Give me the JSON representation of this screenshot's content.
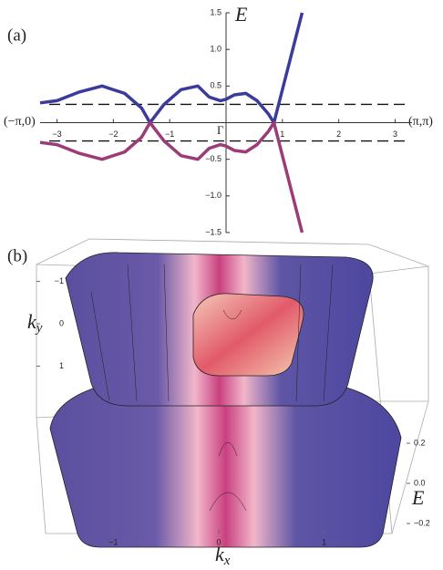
{
  "chart_data": [
    {
      "type": "line",
      "panel_label": "(a)",
      "ylabel": "E",
      "left_label": "(−π,0)",
      "right_label": "(π,π)",
      "center_label": "Γ",
      "xlim": [
        -3.3,
        3.3
      ],
      "ylim": [
        -1.5,
        1.5
      ],
      "xticks": [
        {
          "value": -3,
          "label": "−3"
        },
        {
          "value": -2,
          "label": "−2"
        },
        {
          "value": -1,
          "label": "−1"
        },
        1,
        2,
        3
      ],
      "yticks": [
        {
          "value": -1.5,
          "label": "−1.5"
        },
        {
          "value": -1,
          "label": "−1.0"
        },
        {
          "value": -0.5,
          "label": "−0.5"
        },
        0.5,
        {
          "value": 1,
          "label": "1.0"
        },
        1.5
      ],
      "hlines": [
        0.25,
        -0.25
      ],
      "x": [
        -3.3,
        -3,
        -2.6,
        -2.2,
        -1.8,
        -1.5,
        -1.35,
        -1.1,
        -0.8,
        -0.5,
        -0.3,
        -0.1,
        0,
        0.15,
        0.35,
        0.55,
        0.75,
        0.85,
        1.1,
        1.35
      ],
      "series": [
        {
          "color": "#3b3b9c",
          "values": [
            0.27,
            0.3,
            0.42,
            0.5,
            0.4,
            0.2,
            0,
            0.25,
            0.45,
            0.5,
            0.35,
            0.3,
            0.32,
            0.38,
            0.4,
            0.3,
            0.12,
            0,
            0.75,
            1.5
          ]
        },
        {
          "color": "#9b3c78",
          "values": [
            -0.27,
            -0.3,
            -0.42,
            -0.5,
            -0.4,
            -0.2,
            0,
            -0.25,
            -0.45,
            -0.5,
            -0.35,
            -0.3,
            -0.32,
            -0.38,
            -0.4,
            -0.3,
            -0.12,
            0,
            -0.75,
            -1.5
          ]
        }
      ]
    },
    {
      "type": "surface",
      "panel_label": "(b)",
      "xlabel": {
        "symbol": "k",
        "subscript": "x"
      },
      "ylabel": {
        "symbol": "k",
        "subscript": "y"
      },
      "zlabel": "E",
      "xlim": [
        -1.6,
        1.6
      ],
      "ylim": [
        -1.4,
        1.4
      ],
      "zlim": [
        -0.25,
        0.25
      ],
      "xticks": [
        {
          "value": -1,
          "label": "−1"
        },
        0,
        1
      ],
      "yticks": [
        {
          "value": -1,
          "label": "−1"
        },
        0,
        1
      ],
      "zticks": [
        0.2,
        {
          "value": 0,
          "label": "0.0"
        },
        {
          "value": -0.2,
          "label": "−0.2"
        }
      ]
    }
  ]
}
